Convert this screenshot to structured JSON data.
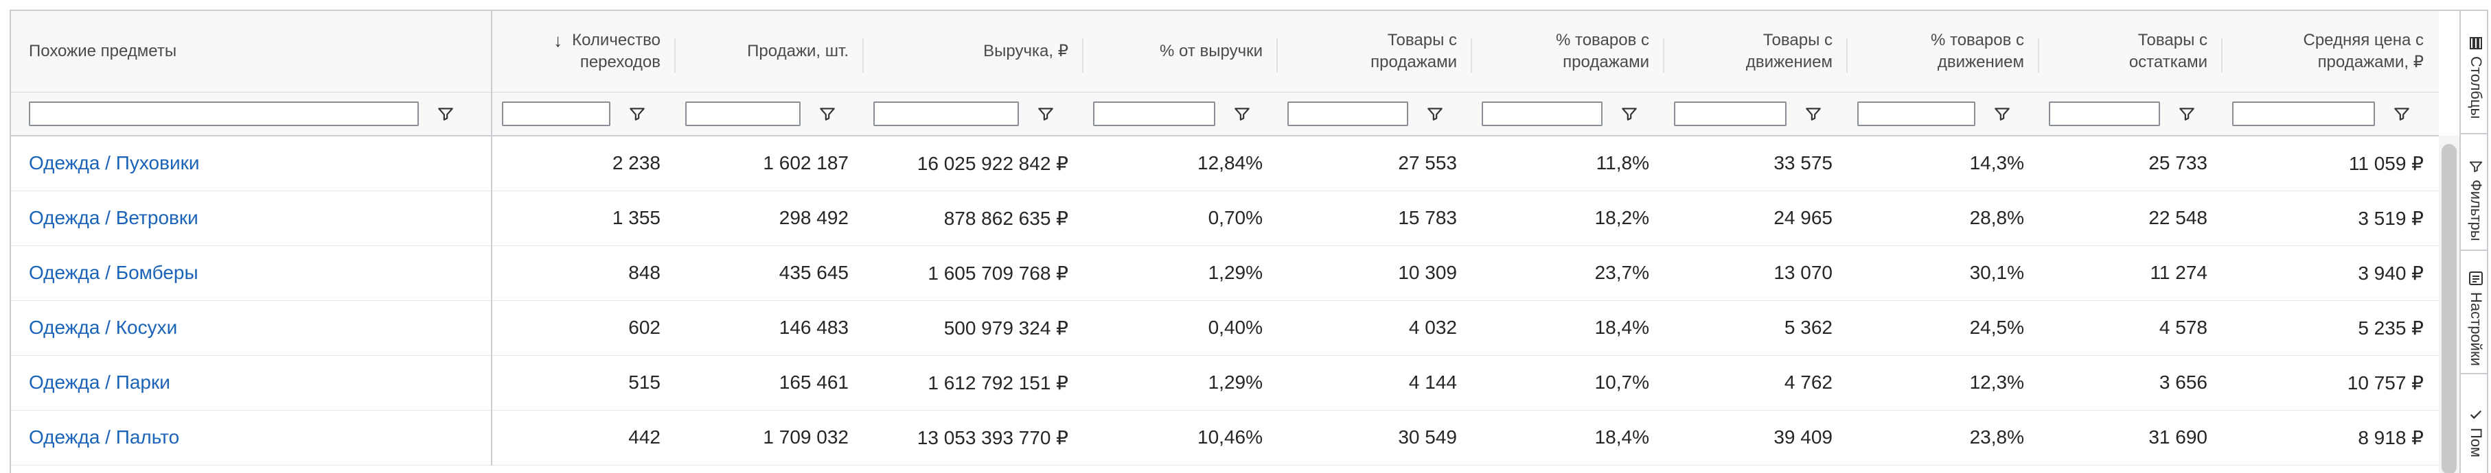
{
  "columns": [
    {
      "line1": "Похожие предметы",
      "line2": ""
    },
    {
      "line1": "Количество",
      "line2": "переходов"
    },
    {
      "line1": "Продажи, шт.",
      "line2": ""
    },
    {
      "line1": "Выручка, ₽",
      "line2": ""
    },
    {
      "line1": "% от выручки",
      "line2": ""
    },
    {
      "line1": "Товары с",
      "line2": "продажами"
    },
    {
      "line1": "% товаров с",
      "line2": "продажами"
    },
    {
      "line1": "Товары с",
      "line2": "движением"
    },
    {
      "line1": "% товаров с",
      "line2": "движением"
    },
    {
      "line1": "Товары с",
      "line2": "остатками"
    },
    {
      "line1": "Средняя цена с",
      "line2": "продажами, ₽"
    }
  ],
  "sort_indicator": "↓",
  "rows": [
    [
      "Одежда / Пуховики",
      "2 238",
      "1 602 187",
      "16 025 922 842 ₽",
      "12,84%",
      "27 553",
      "11,8%",
      "33 575",
      "14,3%",
      "25 733",
      "11 059 ₽"
    ],
    [
      "Одежда / Ветровки",
      "1 355",
      "298 492",
      "878 862 635 ₽",
      "0,70%",
      "15 783",
      "18,2%",
      "24 965",
      "28,8%",
      "22 548",
      "3 519 ₽"
    ],
    [
      "Одежда / Бомберы",
      "848",
      "435 645",
      "1 605 709 768 ₽",
      "1,29%",
      "10 309",
      "23,7%",
      "13 070",
      "30,1%",
      "11 274",
      "3 940 ₽"
    ],
    [
      "Одежда / Косухи",
      "602",
      "146 483",
      "500 979 324 ₽",
      "0,40%",
      "4 032",
      "18,4%",
      "5 362",
      "24,5%",
      "4 578",
      "5 235 ₽"
    ],
    [
      "Одежда / Парки",
      "515",
      "165 461",
      "1 612 792 151 ₽",
      "1,29%",
      "4 144",
      "10,7%",
      "4 762",
      "12,3%",
      "3 656",
      "10 757 ₽"
    ],
    [
      "Одежда / Пальто",
      "442",
      "1 709 032",
      "13 053 393 770 ₽",
      "10,46%",
      "30 549",
      "18,4%",
      "39 409",
      "23,8%",
      "31 690",
      "8 918 ₽"
    ]
  ],
  "side_panel": {
    "columns_label": "Столбцы",
    "filters_label": "Фильтры",
    "settings_label": "Настройки",
    "fourth_label": "Пом"
  },
  "colors": {
    "link": "#1a63b8",
    "header_bg": "#f8f8f8",
    "border": "#c9cdd2"
  }
}
